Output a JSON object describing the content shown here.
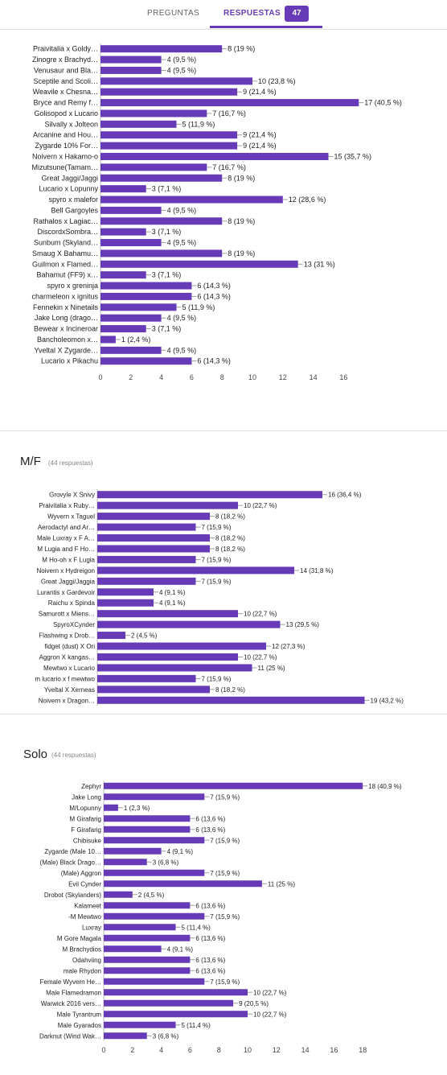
{
  "tabs": {
    "preguntas": "PREGUNTAS",
    "respuestas": "RESPUESTAS",
    "count": "47"
  },
  "colors": {
    "accent": "#673ab7",
    "bar": "#673ab7"
  },
  "questions": [
    {
      "title": "",
      "count_label": "",
      "chart_data": {
        "type": "bar",
        "orientation": "horizontal",
        "ticks": [
          0,
          2,
          4,
          6,
          8,
          10,
          12,
          14,
          16
        ],
        "xlim": [
          0,
          17
        ],
        "categories": [
          "Praivitalia x Goldy…",
          "Zinogre x Brachyd…",
          "Venusaur and Bla…",
          "Sceptile and Scoli…",
          "Weavile x Chesna…",
          "Bryce and Remy f…",
          "Golisopod x Lucario",
          "Silvally x Jolteon",
          "Arcanine and Hou…",
          "Zygarde 10% For…",
          "Noivern x Hakamo-o",
          "Mizutsune(Tamam…",
          "Great Jaggi/Jaggi",
          "Lucario x Lopunny",
          "spyro x malefor",
          "Bell Gargoyles",
          "Rathalos x Lagiac…",
          "DiscordxSombra…",
          "Sunbum (Skyland…",
          "Smaug X Bahamu…",
          "Guilmon x Flamed…",
          "Bahamut (FF9) x…",
          "spyro x greninja",
          "charmeleon x ignitus",
          "Fennekin x Ninetails",
          "Jake Long (drago…",
          "Bewear x Incineroar",
          "Bancholeomon x…",
          "Yveltal X Zygarde…",
          "Lucario x Pikachu"
        ],
        "values": [
          8,
          4,
          4,
          10,
          9,
          17,
          7,
          5,
          9,
          9,
          15,
          7,
          8,
          3,
          12,
          4,
          8,
          3,
          4,
          8,
          13,
          3,
          6,
          6,
          5,
          4,
          3,
          1,
          4,
          6
        ],
        "value_labels": [
          "8 (19 %)",
          "4 (9,5 %)",
          "4 (9,5 %)",
          "10 (23,8 %)",
          "9 (21,4 %)",
          "17 (40,5 %)",
          "7 (16,7 %)",
          "5 (11,9 %)",
          "9 (21,4 %)",
          "9 (21,4 %)",
          "15 (35,7 %)",
          "7 (16,7 %)",
          "8 (19 %)",
          "3 (7,1 %)",
          "12 (28,6 %)",
          "4 (9,5 %)",
          "8 (19 %)",
          "3 (7,1 %)",
          "4 (9,5 %)",
          "8 (19 %)",
          "13 (31 %)",
          "3 (7,1 %)",
          "6 (14,3 %)",
          "6 (14,3 %)",
          "5 (11,9 %)",
          "4 (9,5 %)",
          "3 (7,1 %)",
          "1 (2,4 %)",
          "4 (9,5 %)",
          "6 (14,3 %)"
        ]
      }
    },
    {
      "title": "M/F",
      "count_label": "(44 respuestas)",
      "chart_data": {
        "type": "bar",
        "orientation": "horizontal",
        "ticks": [],
        "xlim": [
          0,
          19
        ],
        "categories": [
          "Grovyle X Snivy",
          "Praivitalia x Ruby…",
          "Wyvern x Taguel",
          "Aerodactyl and Ar…",
          "Male Luxray x F A…",
          "M Lugia and F Ho…",
          "M Ho-oh x F Lugia",
          "Noivern x Hydreigon",
          "Great Jaggi/Jaggia",
          "Lurantis x Gardevoir",
          "Raichu x Spinda",
          "Samurott x Miens…",
          "SpyroXCynder",
          "Flashwing x Drob…",
          "fidget (dust) X Ori",
          "Aggron X kangas…",
          "Mewtwo x Lucario",
          "m lucario x f mewtwo",
          "Yveltal X Xerneas",
          "Noivern x Dragon…"
        ],
        "values": [
          16,
          10,
          8,
          7,
          8,
          8,
          7,
          14,
          7,
          4,
          4,
          10,
          13,
          2,
          12,
          10,
          11,
          7,
          8,
          19
        ],
        "value_labels": [
          "16 (36,4 %)",
          "10 (22,7 %)",
          "8 (18,2 %)",
          "7 (15,9 %)",
          "8 (18,2 %)",
          "8 (18,2 %)",
          "7 (15,9 %)",
          "14 (31,8 %)",
          "7 (15,9 %)",
          "4 (9,1 %)",
          "4 (9,1 %)",
          "10 (22,7 %)",
          "13 (29,5 %)",
          "2 (4,5 %)",
          "12 (27,3 %)",
          "10 (22,7 %)",
          "11 (25 %)",
          "7 (15,9 %)",
          "8 (18,2 %)",
          "19 (43,2 %)"
        ]
      }
    },
    {
      "title": "Solo",
      "count_label": "(44 respuestas)",
      "chart_data": {
        "type": "bar",
        "orientation": "horizontal",
        "ticks": [
          0,
          2,
          4,
          6,
          8,
          10,
          12,
          14,
          16,
          18
        ],
        "xlim": [
          0,
          18
        ],
        "categories": [
          "Zephyr",
          "Jake Long",
          "M/Lopunny",
          "M Girafarig",
          "F Girafarig",
          "Chibisuke",
          "Zygarde (Male 10…",
          "(Male) Black Drago…",
          "(Male) Aggron",
          "Evil Cynder",
          "Drobot (Skylanders)",
          "Kalameet",
          "-M Mewtwo",
          "Luxray",
          "M Gore Magala",
          "M Brachydios",
          "Odahviing",
          "male Rhydon",
          "Female Wyvern He…",
          "Male Flamedramon",
          "Warwick 2016 vers…",
          "Male Tyrantrum",
          "Male Gyarados",
          "Darknut (Wind Wak…"
        ],
        "values": [
          18,
          7,
          1,
          6,
          6,
          7,
          4,
          3,
          7,
          11,
          2,
          6,
          7,
          5,
          6,
          4,
          6,
          6,
          7,
          10,
          9,
          10,
          5,
          3
        ],
        "value_labels": [
          "18 (40,9 %)",
          "7 (15,9 %)",
          "1 (2,3 %)",
          "6 (13,6 %)",
          "6 (13,6 %)",
          "7 (15,9 %)",
          "4 (9,1 %)",
          "3 (6,8 %)",
          "7 (15,9 %)",
          "11 (25 %)",
          "2 (4,5 %)",
          "6 (13,6 %)",
          "7 (15,9 %)",
          "5 (11,4 %)",
          "6 (13,6 %)",
          "4 (9,1 %)",
          "6 (13,6 %)",
          "6 (13,6 %)",
          "7 (15,9 %)",
          "10 (22,7 %)",
          "9 (20,5 %)",
          "10 (22,7 %)",
          "5 (11,4 %)",
          "3 (6,8 %)"
        ]
      }
    }
  ]
}
